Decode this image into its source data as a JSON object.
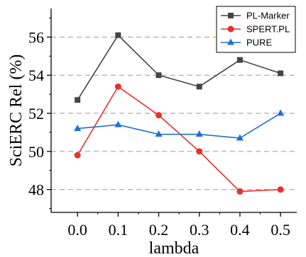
{
  "chart_data": {
    "type": "line",
    "title": "",
    "xlabel": "lambda",
    "ylabel": "SciERC Rel (%)",
    "x": [
      0.0,
      0.1,
      0.2,
      0.3,
      0.4,
      0.5
    ],
    "x_tick_labels": [
      "0.0",
      "0.1",
      "0.2",
      "0.3",
      "0.4",
      "0.5"
    ],
    "xlim": [
      -0.065,
      0.54
    ],
    "ylim": [
      46.8,
      57.5
    ],
    "y_ticks": [
      48,
      50,
      52,
      54,
      56
    ],
    "y_tick_labels": [
      "48",
      "50",
      "52",
      "54",
      "56"
    ],
    "grid": "horizontal dashed",
    "legend_position": "top-right",
    "series": [
      {
        "name": "PL-Marker",
        "color": "#444444",
        "marker": "square",
        "values": [
          52.7,
          56.1,
          54.0,
          53.4,
          54.8,
          54.1
        ]
      },
      {
        "name": "SPERT.PL",
        "color": "#e8302d",
        "marker": "circle",
        "values": [
          49.8,
          53.4,
          51.9,
          50.0,
          47.9,
          48.0
        ]
      },
      {
        "name": "PURE",
        "color": "#1f6fd6",
        "marker": "triangle",
        "values": [
          51.2,
          51.4,
          50.9,
          50.9,
          50.7,
          52.0
        ]
      }
    ]
  }
}
